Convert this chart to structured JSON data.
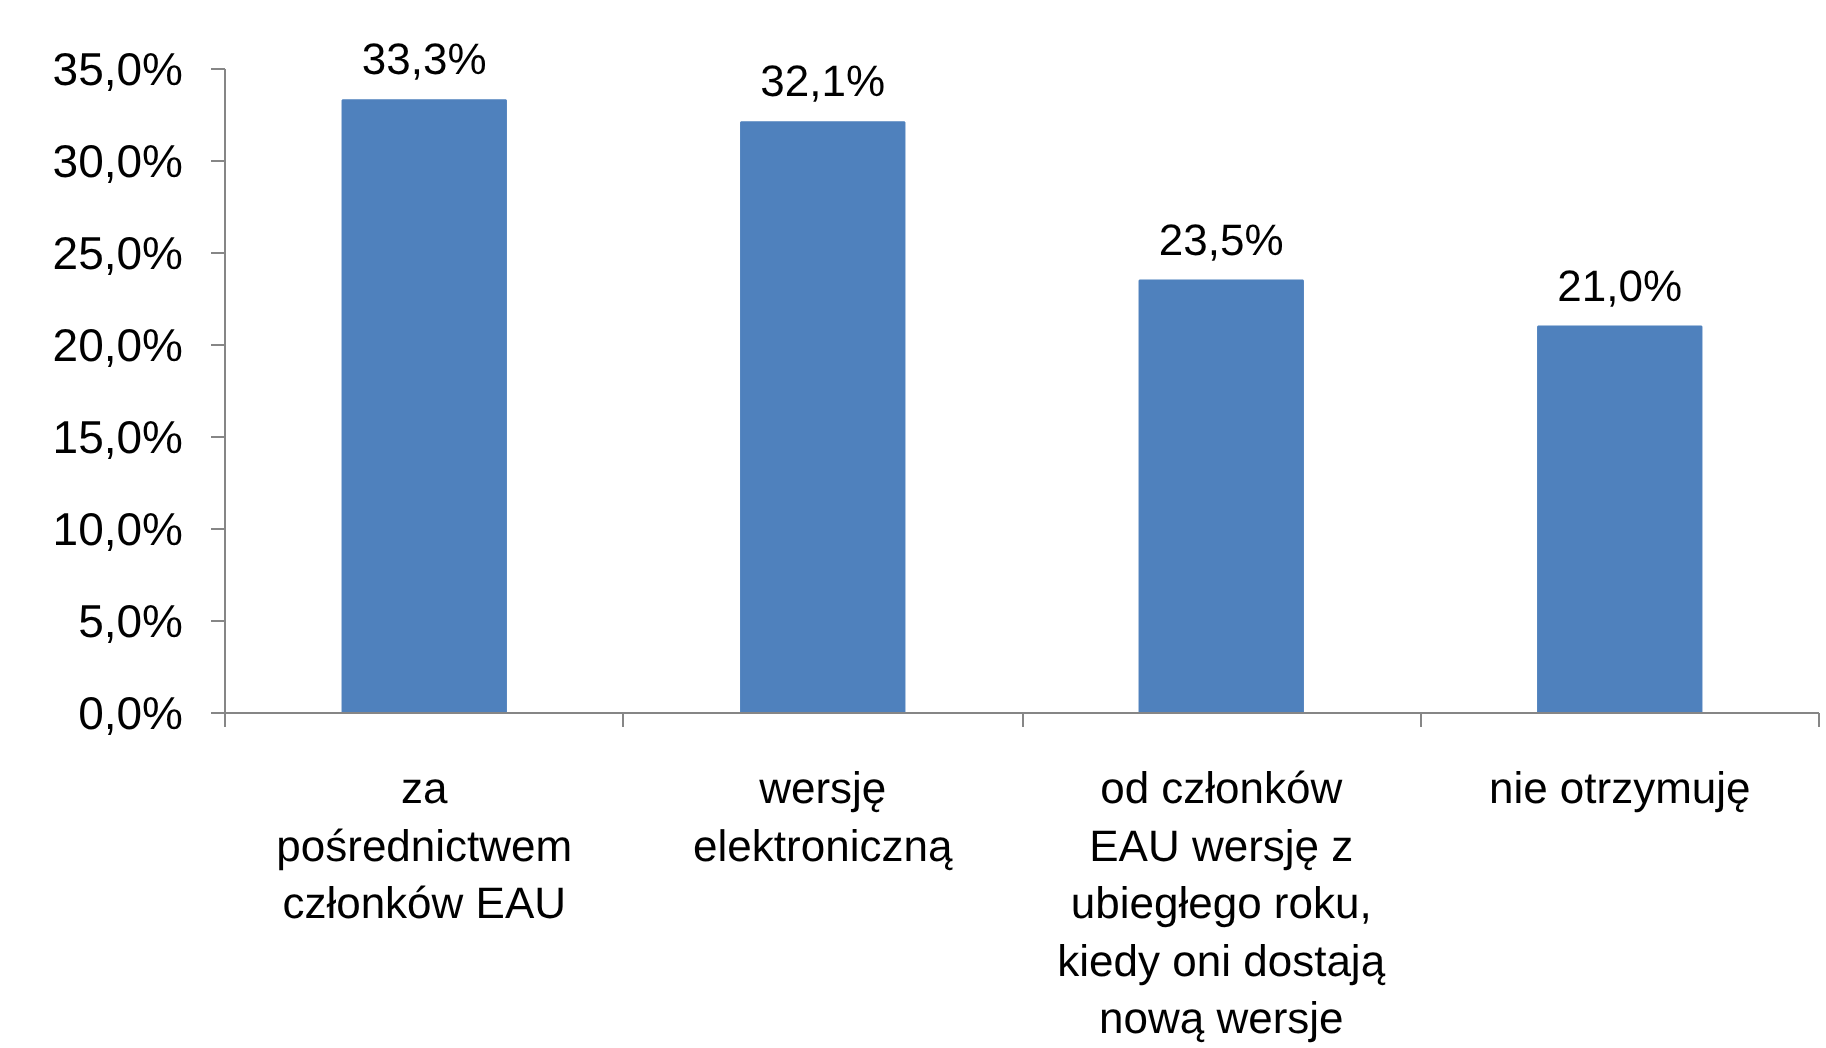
{
  "chart_data": {
    "type": "bar",
    "categories": [
      "za\npośrednictwem\nczłonków EAU",
      "wersję\nelektroniczną",
      "od członków\nEAU wersję z\nubiegłego roku,\nkiedy oni dostają\nnową wersje",
      "nie otrzymuję"
    ],
    "values": [
      33.3,
      32.1,
      23.5,
      21.0
    ],
    "color": "#4f81bd",
    "value_labels": [
      "33,3%",
      "32,1%",
      "23,5%",
      "21,0%"
    ],
    "ylim": [
      0,
      35
    ],
    "yticks": [
      {
        "value": 0,
        "label": "0,0%"
      },
      {
        "value": 5,
        "label": "5,0%"
      },
      {
        "value": 10,
        "label": "10,0%"
      },
      {
        "value": 15,
        "label": "15,0%"
      },
      {
        "value": 20,
        "label": "20,0%"
      },
      {
        "value": 25,
        "label": "25,0%"
      },
      {
        "value": 30,
        "label": "30,0%"
      },
      {
        "value": 35,
        "label": "35,0%"
      }
    ],
    "grid": false
  }
}
